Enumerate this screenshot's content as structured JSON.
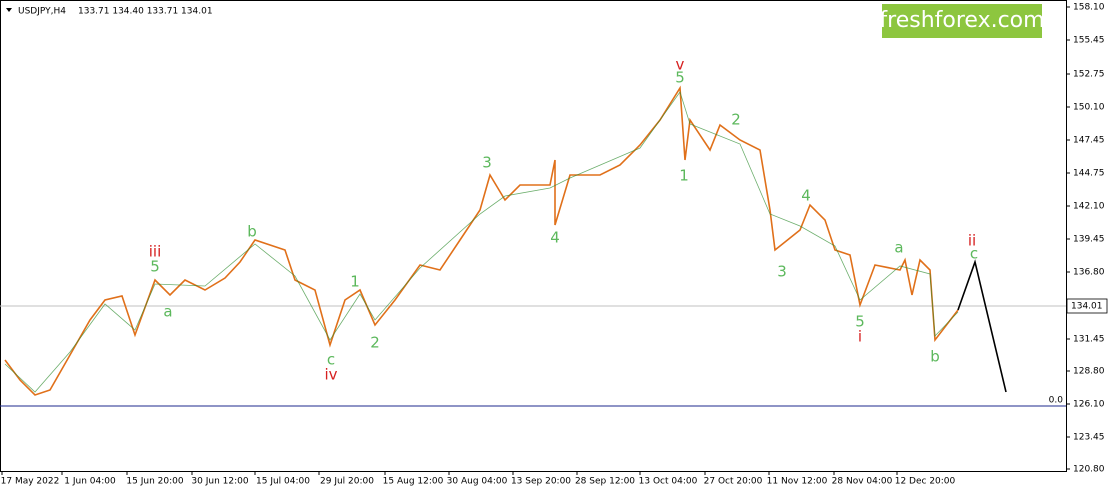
{
  "header": {
    "symbol": "USDJPY,H4",
    "ohlc": "133.71 134.40 133.71 134.01"
  },
  "logo": "freshforex.com",
  "price_axis": [
    "158.10",
    "155.45",
    "152.75",
    "150.10",
    "147.45",
    "144.75",
    "142.10",
    "139.45",
    "136.80",
    "131.45",
    "128.80",
    "126.10",
    "123.45",
    "120.80"
  ],
  "current_price": "134.01",
  "level_label": "0.0",
  "time_axis": [
    "17 May 2022",
    "1 Jun 04:00",
    "15 Jun 20:00",
    "30 Jun 12:00",
    "15 Jul 04:00",
    "29 Jul 20:00",
    "15 Aug 12:00",
    "30 Aug 04:00",
    "13 Sep 20:00",
    "28 Sep 12:00",
    "13 Oct 04:00",
    "27 Oct 20:00",
    "11 Nov 12:00",
    "28 Nov 04:00",
    "12 Dec 20:00"
  ],
  "wave_labels": [
    "v",
    "5",
    "iii",
    "5",
    "a",
    "b",
    "c",
    "iv",
    "1",
    "2",
    "3",
    "4",
    "1",
    "2",
    "3",
    "4",
    "5",
    "i",
    "a",
    "b",
    "ii",
    "c"
  ]
}
